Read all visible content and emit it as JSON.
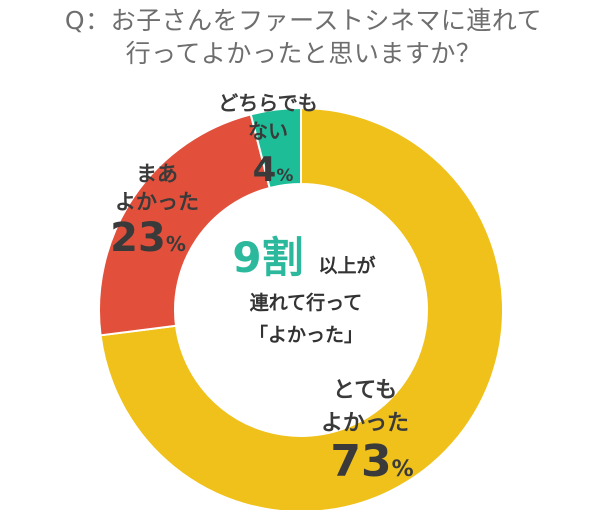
{
  "title_line1": "Q：お子さんをファーストシネマに連れて",
  "title_line2": "行ってよかったと思いますか？",
  "center": {
    "highlight": "9割",
    "line1_rest": "以上が",
    "line2": "連れて行って",
    "line3": "「よかった」"
  },
  "colors": {
    "yellow": "#EFC11A",
    "red": "#E2503B",
    "green": "#1DBD97",
    "highlight": "#2CB89C"
  },
  "chart_data": {
    "type": "pie",
    "donut": true,
    "slices": [
      {
        "label_lines": [
          "とても",
          "よかった"
        ],
        "value": 73,
        "unit": "%",
        "color": "#EFC11A"
      },
      {
        "label_lines": [
          "まあ",
          "よかった"
        ],
        "value": 23,
        "unit": "%",
        "color": "#E2503B"
      },
      {
        "label_lines": [
          "どちらでも",
          "ない"
        ],
        "value": 4,
        "unit": "%",
        "color": "#1DBD97"
      }
    ]
  }
}
